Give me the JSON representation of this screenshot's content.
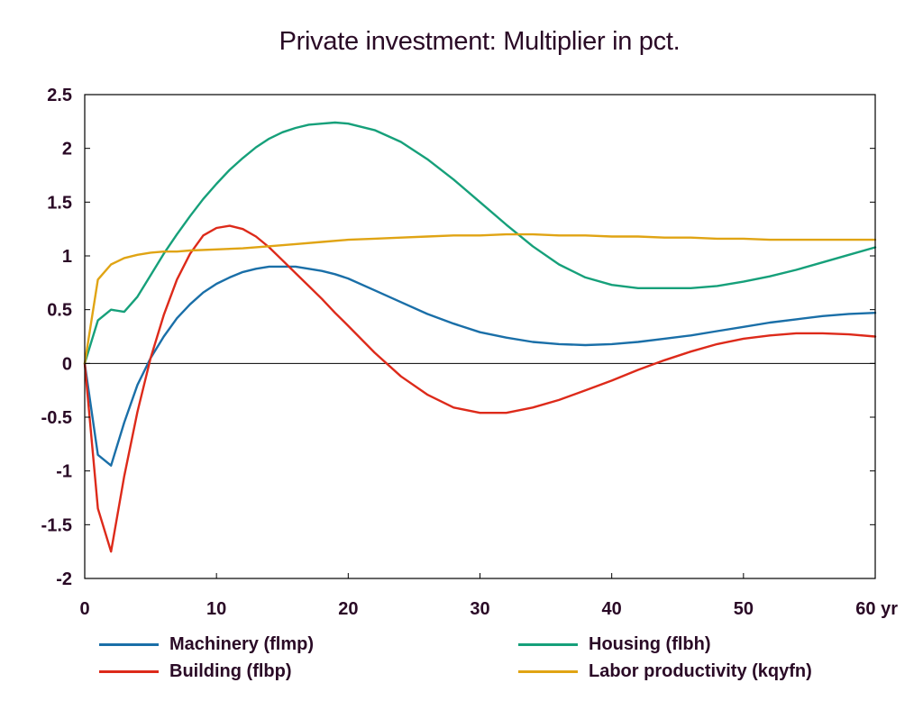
{
  "chart_data": {
    "type": "line",
    "title": "Private investment: Multiplier in pct.",
    "xlabel": "",
    "ylabel": "",
    "x_tick_labels": [
      "0",
      "10",
      "20",
      "30",
      "40",
      "50",
      "60 yr"
    ],
    "x_ticks": [
      0,
      10,
      20,
      30,
      40,
      50,
      60
    ],
    "y_tick_labels": [
      "2.5",
      "2",
      "1.5",
      "1",
      "0.5",
      "0",
      "-0.5",
      "-1",
      "-1.5",
      "-2"
    ],
    "y_ticks": [
      2.5,
      2,
      1.5,
      1,
      0.5,
      0,
      -0.5,
      -1,
      -1.5,
      -2
    ],
    "xlim": [
      0,
      60
    ],
    "ylim": [
      -2,
      2.5
    ],
    "grid": false,
    "zero_line": true,
    "legend_position": "bottom",
    "series": [
      {
        "name": "Machinery (flmp)",
        "color": "#1a6fa8",
        "x": [
          0,
          1,
          2,
          3,
          4,
          5,
          6,
          7,
          8,
          9,
          10,
          11,
          12,
          13,
          14,
          15,
          16,
          17,
          18,
          19,
          20,
          22,
          24,
          26,
          28,
          30,
          32,
          34,
          36,
          38,
          40,
          42,
          44,
          46,
          48,
          50,
          52,
          54,
          56,
          58,
          60
        ],
        "y": [
          0,
          -0.85,
          -0.95,
          -0.55,
          -0.2,
          0.05,
          0.25,
          0.42,
          0.55,
          0.66,
          0.74,
          0.8,
          0.85,
          0.88,
          0.9,
          0.9,
          0.9,
          0.88,
          0.86,
          0.83,
          0.79,
          0.68,
          0.57,
          0.46,
          0.37,
          0.29,
          0.24,
          0.2,
          0.18,
          0.17,
          0.18,
          0.2,
          0.23,
          0.26,
          0.3,
          0.34,
          0.38,
          0.41,
          0.44,
          0.46,
          0.47
        ]
      },
      {
        "name": "Building (flbp)",
        "color": "#dd2a1a",
        "x": [
          0,
          1,
          2,
          3,
          4,
          5,
          6,
          7,
          8,
          9,
          10,
          11,
          12,
          13,
          14,
          15,
          16,
          17,
          18,
          19,
          20,
          22,
          24,
          26,
          28,
          30,
          32,
          34,
          36,
          38,
          40,
          42,
          44,
          46,
          48,
          50,
          52,
          54,
          56,
          58,
          60
        ],
        "y": [
          0,
          -1.35,
          -1.75,
          -1.05,
          -0.45,
          0.05,
          0.45,
          0.78,
          1.02,
          1.19,
          1.26,
          1.28,
          1.25,
          1.18,
          1.08,
          0.96,
          0.84,
          0.72,
          0.6,
          0.47,
          0.35,
          0.1,
          -0.12,
          -0.29,
          -0.41,
          -0.46,
          -0.46,
          -0.41,
          -0.34,
          -0.25,
          -0.16,
          -0.06,
          0.03,
          0.11,
          0.18,
          0.23,
          0.26,
          0.28,
          0.28,
          0.27,
          0.25
        ]
      },
      {
        "name": "Housing (flbh)",
        "color": "#16a07a",
        "x": [
          0,
          1,
          2,
          3,
          4,
          5,
          6,
          7,
          8,
          9,
          10,
          11,
          12,
          13,
          14,
          15,
          16,
          17,
          18,
          19,
          20,
          22,
          24,
          26,
          28,
          30,
          32,
          34,
          36,
          38,
          40,
          42,
          44,
          46,
          48,
          50,
          52,
          54,
          56,
          58,
          60
        ],
        "y": [
          0,
          0.4,
          0.5,
          0.48,
          0.62,
          0.82,
          1.02,
          1.2,
          1.37,
          1.53,
          1.67,
          1.8,
          1.91,
          2.01,
          2.09,
          2.15,
          2.19,
          2.22,
          2.23,
          2.24,
          2.23,
          2.17,
          2.06,
          1.9,
          1.71,
          1.5,
          1.29,
          1.09,
          0.92,
          0.8,
          0.73,
          0.7,
          0.7,
          0.7,
          0.72,
          0.76,
          0.81,
          0.87,
          0.94,
          1.01,
          1.08
        ]
      },
      {
        "name": "Labor productivity (kqyfn)",
        "color": "#e0a414",
        "x": [
          0,
          1,
          2,
          3,
          4,
          5,
          6,
          7,
          8,
          10,
          12,
          14,
          16,
          18,
          20,
          22,
          24,
          26,
          28,
          30,
          32,
          34,
          36,
          38,
          40,
          42,
          44,
          46,
          48,
          50,
          52,
          54,
          56,
          58,
          60
        ],
        "y": [
          0,
          0.78,
          0.92,
          0.98,
          1.01,
          1.03,
          1.04,
          1.04,
          1.05,
          1.06,
          1.07,
          1.09,
          1.11,
          1.13,
          1.15,
          1.16,
          1.17,
          1.18,
          1.19,
          1.19,
          1.2,
          1.2,
          1.19,
          1.19,
          1.18,
          1.18,
          1.17,
          1.17,
          1.16,
          1.16,
          1.15,
          1.15,
          1.15,
          1.15,
          1.15
        ]
      }
    ]
  }
}
